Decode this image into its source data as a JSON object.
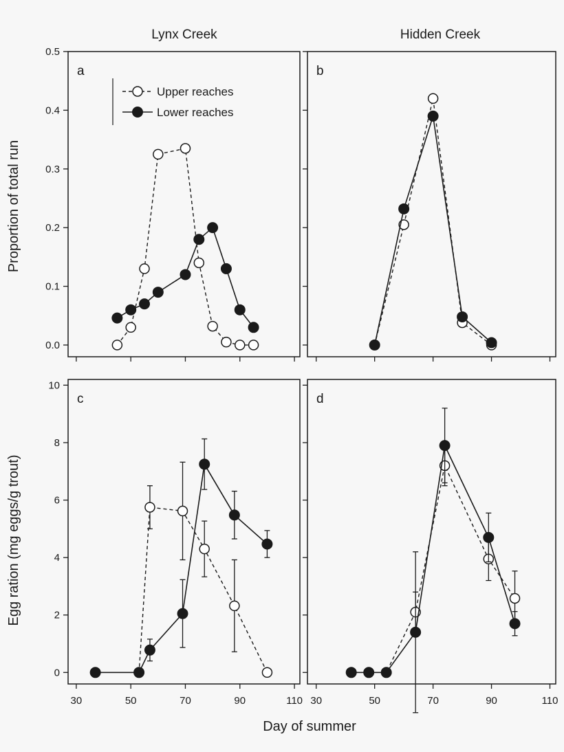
{
  "figure": {
    "column_titles": [
      "Lynx Creek",
      "Hidden Creek"
    ],
    "xlabel": "Day of summer",
    "ylabel_top": "Proportion of total run",
    "ylabel_bottom": "Egg ration (mg eggs/g trout)",
    "legend": {
      "upper": "Upper reaches",
      "lower": "Lower reaches"
    }
  },
  "chart_data": [
    {
      "id": "a",
      "letter": "a",
      "type": "line",
      "title": "Lynx Creek",
      "xlabel": "",
      "ylabel": "Proportion of total run",
      "xlim": [
        27,
        112
      ],
      "ylim": [
        -0.02,
        0.5
      ],
      "xticks": [
        30,
        50,
        70,
        90,
        110
      ],
      "yticks": [
        0.0,
        0.1,
        0.2,
        0.3,
        0.4,
        0.5
      ],
      "ytick_labels": [
        "0.0",
        "0.1",
        "0.2",
        "0.3",
        "0.4",
        "0.5"
      ],
      "show_x_labels": false,
      "show_y_labels": true,
      "legend": true,
      "series": [
        {
          "name": "Upper reaches",
          "style": "open-dashed",
          "x": [
            45,
            50,
            55,
            60,
            70,
            75,
            80,
            85,
            90,
            95
          ],
          "y": [
            0.0,
            0.03,
            0.13,
            0.325,
            0.335,
            0.14,
            0.032,
            0.005,
            0.0,
            0.0
          ]
        },
        {
          "name": "Lower reaches",
          "style": "filled-solid",
          "x": [
            45,
            50,
            55,
            60,
            70,
            75,
            80,
            85,
            90,
            95
          ],
          "y": [
            0.046,
            0.06,
            0.07,
            0.09,
            0.12,
            0.18,
            0.2,
            0.13,
            0.06,
            0.03
          ]
        }
      ]
    },
    {
      "id": "b",
      "letter": "b",
      "type": "line",
      "title": "Hidden Creek",
      "xlabel": "",
      "ylabel": "",
      "xlim": [
        27,
        112
      ],
      "ylim": [
        -0.02,
        0.5
      ],
      "xticks": [
        30,
        50,
        70,
        90,
        110
      ],
      "yticks": [
        0.0,
        0.1,
        0.2,
        0.3,
        0.4,
        0.5
      ],
      "show_x_labels": false,
      "show_y_labels": false,
      "legend": false,
      "series": [
        {
          "name": "Upper reaches",
          "style": "open-dashed",
          "x": [
            50,
            60,
            70,
            80,
            90
          ],
          "y": [
            0.0,
            0.205,
            0.42,
            0.038,
            0.0
          ]
        },
        {
          "name": "Lower reaches",
          "style": "filled-solid",
          "x": [
            50,
            60,
            70,
            80,
            90
          ],
          "y": [
            0.0,
            0.232,
            0.39,
            0.048,
            0.004
          ]
        }
      ]
    },
    {
      "id": "c",
      "letter": "c",
      "type": "line",
      "title": "Lynx Creek",
      "xlabel": "Day of summer",
      "ylabel": "Egg ration (mg eggs/g trout)",
      "xlim": [
        27,
        112
      ],
      "ylim": [
        -0.4,
        10.2
      ],
      "xticks": [
        30,
        50,
        70,
        90,
        110
      ],
      "xtick_labels": [
        "30",
        "50",
        "70",
        "90",
        "110"
      ],
      "yticks": [
        0,
        2,
        4,
        6,
        8,
        10
      ],
      "ytick_labels": [
        "0",
        "2",
        "4",
        "6",
        "8",
        "10"
      ],
      "show_x_labels": true,
      "show_y_labels": true,
      "legend": false,
      "series": [
        {
          "name": "Upper reaches",
          "style": "open-dashed",
          "x": [
            37,
            53,
            57,
            69,
            77,
            88,
            100
          ],
          "y": [
            0,
            0,
            5.75,
            5.62,
            4.3,
            2.32,
            0
          ],
          "err": [
            0,
            0,
            0.75,
            1.7,
            0.97,
            1.6,
            0
          ]
        },
        {
          "name": "Lower reaches",
          "style": "filled-solid",
          "x": [
            37,
            53,
            57,
            69,
            77,
            88,
            100
          ],
          "y": [
            0,
            0,
            0.78,
            2.05,
            7.25,
            5.48,
            4.47
          ],
          "err": [
            0,
            0,
            0.38,
            1.18,
            0.88,
            0.83,
            0.47
          ]
        }
      ]
    },
    {
      "id": "d",
      "letter": "d",
      "type": "line",
      "title": "Hidden Creek",
      "xlabel": "Day of summer",
      "ylabel": "",
      "xlim": [
        27,
        112
      ],
      "ylim": [
        -0.4,
        10.2
      ],
      "xticks": [
        30,
        50,
        70,
        90,
        110
      ],
      "xtick_labels": [
        "30",
        "50",
        "70",
        "90",
        "110"
      ],
      "yticks": [
        0,
        2,
        4,
        6,
        8,
        10
      ],
      "show_x_labels": true,
      "show_y_labels": false,
      "legend": false,
      "series": [
        {
          "name": "Upper reaches",
          "style": "open-dashed",
          "x": [
            42,
            48,
            54,
            64,
            74,
            89,
            98
          ],
          "y": [
            0,
            0,
            0,
            2.1,
            7.2,
            3.95,
            2.58
          ],
          "err": [
            0,
            0,
            0,
            0.7,
            0.7,
            0.75,
            0.95
          ]
        },
        {
          "name": "Lower reaches",
          "style": "filled-solid",
          "x": [
            42,
            48,
            54,
            64,
            74,
            89,
            98
          ],
          "y": [
            0,
            0,
            0,
            1.4,
            7.9,
            4.7,
            1.7
          ],
          "err": [
            0,
            0,
            0,
            2.8,
            1.3,
            0.85,
            0.42
          ]
        }
      ]
    }
  ]
}
